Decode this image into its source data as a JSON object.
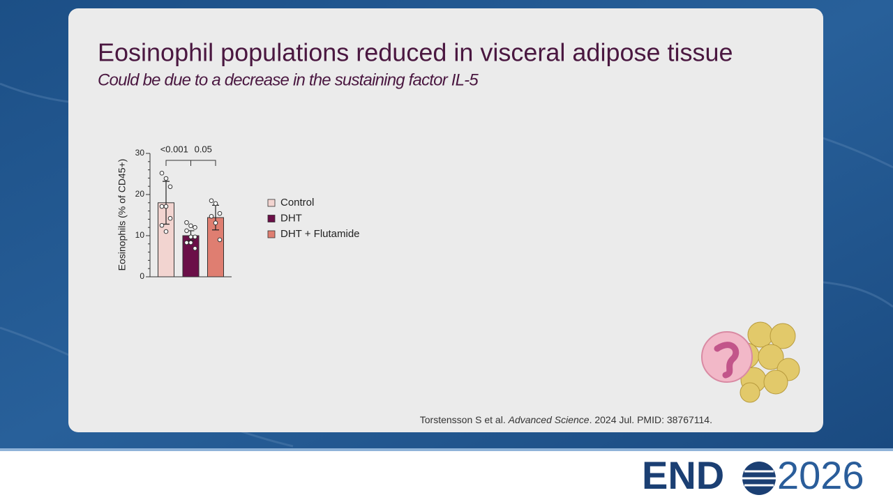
{
  "slide": {
    "title": "Eosinophil populations reduced in visceral adipose tissue",
    "subtitle": "Could be due to a decrease in the sustaining factor IL-5",
    "citation": {
      "authors": "Torstensson S et al. ",
      "journal": "Advanced Science",
      "rest": ". 2024 Jul. PMID: 38767114."
    },
    "logo": {
      "left": "END",
      "right": "2026"
    }
  },
  "chart_data": {
    "type": "bar",
    "y_label": "Eosinophils (% of CD45+)",
    "categories": [
      null
    ],
    "series": [
      {
        "name": "Control",
        "color": "#f2d4d0",
        "values": [
          18
        ],
        "errors": [
          5.2
        ],
        "points": [
          25.2,
          23.9,
          21.9,
          17.1,
          17.1,
          14.2,
          12.5,
          11.0
        ]
      },
      {
        "name": "DHT",
        "color": "#6b0f48",
        "values": [
          10
        ],
        "errors": [
          1.2
        ],
        "points": [
          13.2,
          12.4,
          12.0,
          11.2,
          9.7,
          9.7,
          8.3,
          8.3,
          6.9
        ]
      },
      {
        "name": "DHT + Flutamide",
        "color": "#df7e71",
        "values": [
          14.4
        ],
        "errors": [
          3.0
        ],
        "points": [
          18.5,
          17.8,
          15.4,
          14.7,
          13.1,
          9.0
        ]
      }
    ],
    "annotations": [
      "<0.001",
      "0.05"
    ],
    "ylim": [
      0,
      30
    ],
    "yticks": [
      0,
      10,
      20,
      30
    ],
    "yminorticks": [
      2,
      4,
      6,
      8,
      12,
      14,
      16,
      18,
      22,
      24,
      26,
      28
    ],
    "grid": false,
    "legend": "right"
  }
}
